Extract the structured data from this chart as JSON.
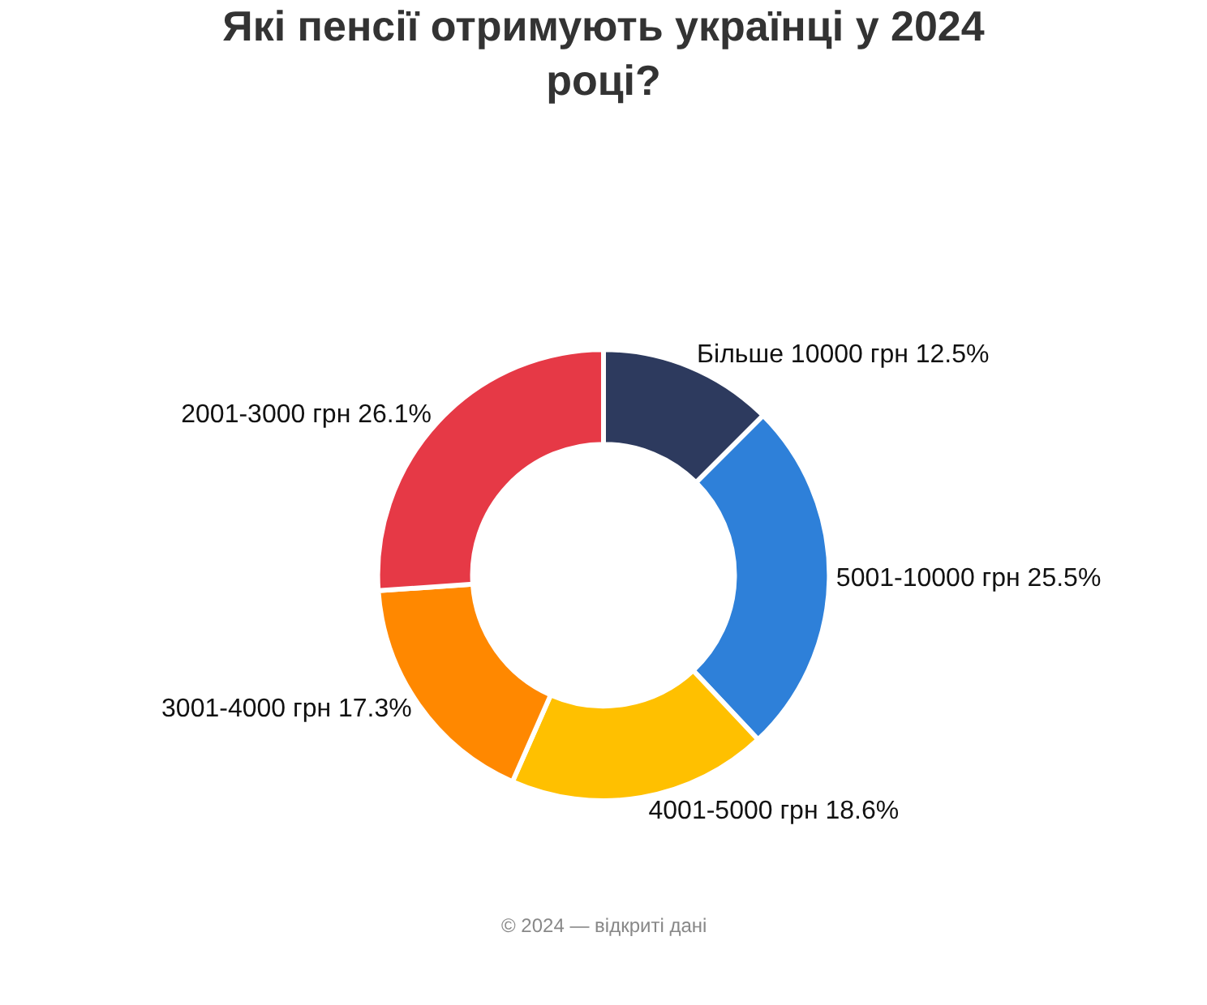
{
  "chart_data": {
    "type": "donut",
    "title": "Які пенсії отримують українці у 2024 році?",
    "categories": [
      "Більше 10000 грн",
      "5001-10000 грн",
      "4001-5000 грн",
      "3001-4000 грн",
      "2001-3000 грн"
    ],
    "values": [
      12.5,
      25.5,
      18.6,
      17.3,
      26.1
    ],
    "value_labels": [
      "12.5%",
      "25.5%",
      "18.6%",
      "17.3%",
      "26.1%"
    ],
    "colors": [
      "#2d3a5e",
      "#2e80d9",
      "#ffc000",
      "#ff8800",
      "#e63946"
    ],
    "annotations": [
      "© 2024 — відкриті дані"
    ],
    "legend": false
  }
}
